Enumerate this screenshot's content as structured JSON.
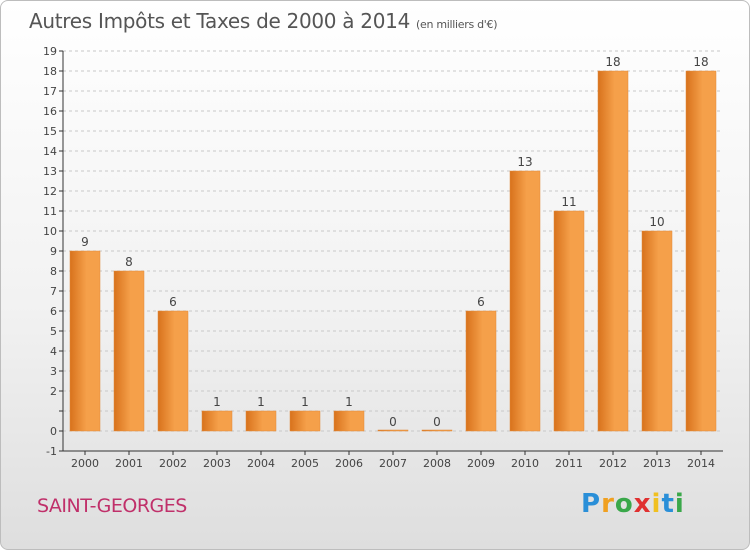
{
  "header": {
    "title": "Autres Impôts et Taxes de 2000 à 2014",
    "subtitle": "(en milliers d'€)"
  },
  "footer": {
    "commune": "SAINT-GEORGES",
    "logo_letters": [
      {
        "char": "P",
        "color": "#2a8fd8"
      },
      {
        "char": "r",
        "color": "#f0a020"
      },
      {
        "char": "o",
        "color": "#3aa84a"
      },
      {
        "char": "x",
        "color": "#e03030"
      },
      {
        "char": "i",
        "color": "#f0c020"
      },
      {
        "char": "t",
        "color": "#2a8fd8"
      },
      {
        "char": "i",
        "color": "#3aa84a"
      }
    ]
  },
  "colors": {
    "bar_light": "#f5a04a",
    "bar_dark": "#d8721c",
    "axis": "#333333",
    "grid": "#c8c8c8",
    "label": "#444444"
  },
  "chart_data": {
    "type": "bar",
    "title": "Autres Impôts et Taxes de 2000 à 2014",
    "subtitle": "(en milliers d'€)",
    "categories": [
      "2000",
      "2001",
      "2002",
      "2003",
      "2004",
      "2005",
      "2006",
      "2007",
      "2008",
      "2009",
      "2010",
      "2011",
      "2012",
      "2013",
      "2014"
    ],
    "values": [
      9,
      8,
      6,
      1,
      1,
      1,
      1,
      0,
      0,
      6,
      13,
      11,
      18,
      10,
      18
    ],
    "value_labels": [
      "9",
      "8",
      "6",
      "1",
      "1",
      "1",
      "1",
      "0",
      "0",
      "6",
      "13",
      "11",
      "18",
      "10",
      "18"
    ],
    "ylim": [
      -1,
      19
    ],
    "yticks": [
      "-1",
      "0",
      "",
      "2",
      "3",
      "4",
      "5",
      "6",
      "7",
      "8",
      "9",
      "10",
      "11",
      "12",
      "13",
      "14",
      "15",
      "16",
      "17",
      "18",
      "19"
    ],
    "grid": true,
    "xlabel": "",
    "ylabel": ""
  }
}
